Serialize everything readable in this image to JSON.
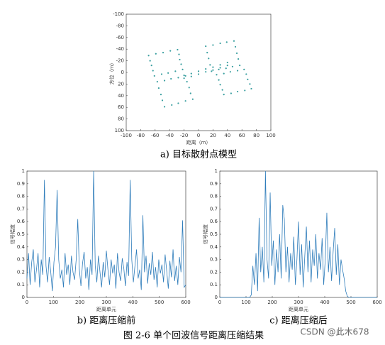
{
  "chart_data": [
    {
      "type": "scatter",
      "caption": "a)  目标散射点模型",
      "xlabel": "距离（m）",
      "ylabel": "方位（m）",
      "color": "#3a9fa0",
      "xlim": [
        -100,
        100
      ],
      "ylim": [
        -100,
        100
      ],
      "y_inverted": true,
      "xticks": [
        -100,
        -80,
        -60,
        -40,
        -20,
        0,
        20,
        40,
        60,
        80,
        100
      ],
      "yticks": [
        -100,
        -80,
        -60,
        -40,
        -20,
        0,
        20,
        40,
        60,
        80,
        100
      ],
      "x": [
        -69,
        -59,
        -49,
        -39,
        -29,
        -27,
        -26,
        -24,
        -22,
        -32,
        -42,
        -51,
        -61,
        -63,
        -65,
        -67,
        10,
        20,
        30,
        39,
        49,
        51,
        53,
        55,
        57,
        47,
        38,
        28,
        18,
        16,
        14,
        12,
        -57,
        -47,
        -38,
        -28,
        -18,
        -16,
        -13,
        -11,
        -8,
        -18,
        -28,
        -37,
        -47,
        -50,
        -52,
        -55,
        25,
        35,
        44,
        54,
        63,
        66,
        68,
        71,
        73,
        64,
        54,
        45,
        35,
        33,
        30,
        28,
        -20,
        -10,
        0,
        10,
        20,
        30,
        40,
        -20,
        -10,
        0,
        10,
        20,
        30,
        40
      ],
      "y": [
        -29,
        -32,
        -34,
        -37,
        -39,
        -31,
        -22,
        -14,
        -5,
        -2,
        1,
        3,
        6,
        -3,
        -12,
        -20,
        -45,
        -47,
        -50,
        -52,
        -54,
        -44,
        -33,
        -23,
        -12,
        -10,
        -7,
        -5,
        -2,
        -13,
        -24,
        -34,
        16,
        14,
        11,
        9,
        6,
        16,
        26,
        36,
        46,
        49,
        53,
        56,
        59,
        48,
        38,
        27,
        4,
        2,
        -1,
        -3,
        -5,
        3,
        12,
        20,
        28,
        31,
        33,
        36,
        38,
        30,
        21,
        13,
        5,
        2,
        -2,
        -6,
        -9,
        -13,
        -17,
        10,
        7,
        3,
        -1,
        -4,
        -8,
        -12
      ]
    },
    {
      "type": "line",
      "caption": "b)  距离压缩前",
      "xlabel": "距离单元",
      "ylabel": "信号幅度",
      "color": "#2f7dbb",
      "xlim": [
        0,
        600
      ],
      "ylim": [
        0,
        1
      ],
      "xticks": [
        0,
        100,
        200,
        300,
        400,
        500,
        600
      ],
      "yticks": [
        0,
        0.1,
        0.2,
        0.3,
        0.4,
        0.5,
        0.6,
        0.7,
        0.8,
        0.9,
        1
      ],
      "x": [
        0,
        6,
        12,
        18,
        24,
        30,
        36,
        42,
        48,
        54,
        60,
        66,
        72,
        78,
        84,
        90,
        96,
        102,
        108,
        114,
        120,
        126,
        132,
        138,
        144,
        150,
        156,
        162,
        168,
        174,
        180,
        186,
        192,
        198,
        204,
        210,
        216,
        222,
        228,
        234,
        240,
        246,
        252,
        258,
        264,
        270,
        276,
        282,
        288,
        294,
        300,
        306,
        312,
        318,
        324,
        330,
        336,
        342,
        348,
        354,
        360,
        366,
        372,
        378,
        384,
        390,
        396,
        402,
        408,
        414,
        420,
        426,
        432,
        438,
        444,
        450,
        456,
        462,
        468,
        474,
        480,
        486,
        492,
        498,
        504,
        510,
        516,
        522,
        528,
        534,
        540,
        546,
        552,
        558,
        564,
        570,
        576,
        582,
        588,
        594,
        600
      ],
      "values": [
        0.15,
        0.35,
        0.1,
        0.28,
        0.38,
        0.12,
        0.22,
        0.35,
        0.08,
        0.3,
        0.18,
        0.93,
        0.25,
        0.12,
        0.32,
        0.2,
        0.05,
        0.28,
        0.4,
        0.85,
        0.3,
        0.15,
        0.22,
        0.08,
        0.35,
        0.18,
        0.26,
        0.1,
        0.33,
        0.2,
        0.14,
        0.3,
        0.62,
        0.22,
        0.09,
        0.27,
        0.36,
        0.15,
        0.24,
        0.06,
        0.3,
        0.18,
        1.0,
        0.25,
        0.12,
        0.33,
        0.2,
        0.08,
        0.28,
        0.16,
        0.37,
        0.22,
        0.1,
        0.3,
        0.19,
        0.26,
        0.07,
        0.35,
        0.2,
        0.13,
        0.31,
        0.23,
        0.09,
        0.28,
        0.17,
        0.93,
        0.3,
        0.12,
        0.25,
        0.38,
        0.15,
        0.22,
        0.06,
        0.65,
        0.2,
        0.33,
        0.11,
        0.27,
        0.18,
        0.36,
        0.14,
        0.24,
        0.08,
        0.3,
        0.19,
        0.26,
        0.12,
        0.34,
        0.21,
        0.07,
        0.29,
        0.16,
        0.38,
        0.13,
        0.25,
        0.1,
        0.32,
        0.2,
        0.61,
        0.08,
        0.1
      ]
    },
    {
      "type": "line",
      "caption": "c)  距离压缩后",
      "xlabel": "距离单元",
      "ylabel": "信号幅度",
      "color": "#2f7dbb",
      "xlim": [
        0,
        600
      ],
      "ylim": [
        0,
        1
      ],
      "xticks": [
        0,
        100,
        200,
        300,
        400,
        500,
        600
      ],
      "yticks": [
        0,
        0.1,
        0.2,
        0.3,
        0.4,
        0.5,
        0.6,
        0.7,
        0.8,
        0.9,
        1
      ],
      "x": [
        0,
        6,
        12,
        18,
        24,
        30,
        36,
        42,
        48,
        54,
        60,
        66,
        72,
        78,
        84,
        90,
        96,
        102,
        108,
        114,
        120,
        126,
        132,
        138,
        144,
        150,
        156,
        162,
        168,
        174,
        180,
        186,
        192,
        198,
        204,
        210,
        216,
        222,
        228,
        234,
        240,
        246,
        252,
        258,
        264,
        270,
        276,
        282,
        288,
        294,
        300,
        306,
        312,
        318,
        324,
        330,
        336,
        342,
        348,
        354,
        360,
        366,
        372,
        378,
        384,
        390,
        396,
        402,
        408,
        414,
        420,
        426,
        432,
        438,
        444,
        450,
        456,
        462,
        468,
        474,
        480,
        486,
        492,
        498,
        504,
        510,
        516,
        522,
        528,
        534,
        540,
        546,
        552,
        558,
        564,
        570,
        576,
        582,
        588,
        594,
        600
      ],
      "values": [
        0,
        0,
        0,
        0,
        0,
        0,
        0,
        0,
        0,
        0,
        0,
        0,
        0,
        0,
        0,
        0,
        0,
        0,
        0,
        0,
        0.02,
        0.25,
        0.1,
        0.35,
        0.05,
        0.63,
        0.2,
        0.4,
        0.12,
        1.0,
        0.3,
        0.15,
        0.83,
        0.25,
        0.45,
        0.1,
        0.38,
        0.2,
        0.5,
        0.15,
        0.73,
        0.62,
        0.2,
        0.4,
        0.12,
        0.35,
        0.22,
        0.48,
        0.1,
        0.3,
        0.6,
        0.18,
        0.42,
        0.08,
        0.33,
        0.56,
        0.2,
        0.45,
        0.12,
        0.38,
        0.25,
        0.5,
        0.15,
        0.35,
        0.22,
        0.47,
        0.1,
        0.3,
        0.67,
        0.2,
        0.4,
        0.13,
        0.36,
        0.55,
        0.18,
        0.42,
        0.1,
        0.3,
        0.22,
        0.15,
        0.05,
        0.01,
        0,
        0,
        0,
        0,
        0,
        0,
        0,
        0,
        0,
        0,
        0,
        0,
        0,
        0,
        0,
        0,
        0,
        0,
        0
      ]
    }
  ],
  "figure_caption": "图 2-6  单个回波信号距离压缩结果",
  "watermark": "CSDN @此木678"
}
